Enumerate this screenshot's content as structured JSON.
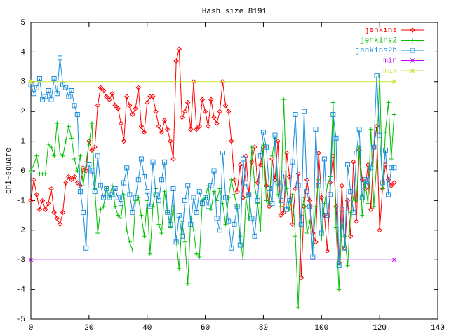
{
  "chart_data": {
    "type": "line",
    "title": "Hash size 8191",
    "ylabel": "chi-square",
    "x": [
      0,
      1,
      2,
      3,
      4,
      5,
      6,
      7,
      8,
      9,
      10,
      11,
      12,
      13,
      14,
      15,
      16,
      17,
      18,
      19,
      20,
      21,
      22,
      23,
      24,
      25,
      26,
      27,
      28,
      29,
      30,
      31,
      32,
      33,
      34,
      35,
      36,
      37,
      38,
      39,
      40,
      41,
      42,
      43,
      44,
      45,
      46,
      47,
      48,
      49,
      50,
      51,
      52,
      53,
      54,
      55,
      56,
      57,
      58,
      59,
      60,
      61,
      62,
      63,
      64,
      65,
      66,
      67,
      68,
      69,
      70,
      71,
      72,
      73,
      74,
      75,
      76,
      77,
      78,
      79,
      80,
      81,
      82,
      83,
      84,
      85,
      86,
      87,
      88,
      89,
      90,
      91,
      92,
      93,
      94,
      95,
      96,
      97,
      98,
      99,
      100,
      101,
      102,
      103,
      104,
      105,
      106,
      107,
      108,
      109,
      110,
      111,
      112,
      113,
      114,
      115,
      116,
      117,
      118,
      119,
      120,
      121,
      122,
      123,
      124,
      125
    ],
    "series": [
      {
        "name": "jenkins",
        "color": "#ff0000",
        "marker": "diamond",
        "values": [
          -1.0,
          -0.3,
          -0.8,
          -1.3,
          -1.0,
          -1.3,
          -1.1,
          -0.6,
          -1.4,
          -1.6,
          -1.8,
          -1.4,
          -0.4,
          -0.2,
          -0.3,
          -0.2,
          -0.4,
          -0.5,
          0.1,
          0.0,
          1.0,
          0.7,
          0.8,
          2.2,
          2.8,
          2.7,
          2.5,
          2.4,
          2.6,
          2.2,
          2.1,
          1.6,
          1.0,
          2.5,
          2.2,
          1.9,
          2.1,
          2.8,
          1.5,
          1.3,
          2.3,
          2.5,
          2.5,
          2.0,
          1.5,
          1.3,
          1.7,
          1.4,
          1.0,
          0.4,
          3.7,
          4.1,
          1.8,
          2.0,
          2.3,
          1.4,
          3.0,
          1.4,
          1.5,
          2.4,
          2.0,
          1.5,
          2.4,
          1.8,
          1.6,
          2.0,
          3.0,
          2.2,
          2.0,
          1.0,
          -0.3,
          -0.7,
          0.2,
          -0.9,
          0.5,
          -0.8,
          0.3,
          0.8,
          -0.4,
          0.2,
          0.8,
          -0.5,
          -1.2,
          0.4,
          -0.3,
          1.0,
          -1.5,
          -1.4,
          0.6,
          -0.2,
          -1.8,
          -0.6,
          -0.1,
          -3.6,
          -1.2,
          -0.3,
          -1.0,
          -2.1,
          -2.4,
          0.6,
          -0.9,
          -1.5,
          -2.7,
          -0.4,
          0.5,
          -1.2,
          -3.1,
          -0.5,
          -2.6,
          -1.0,
          -2.2,
          0.3,
          -1.7,
          0.7,
          -0.3,
          -0.6,
          0.2,
          -1.3,
          0.8,
          1.5,
          -2.0,
          -0.6,
          0.2,
          -0.3,
          -0.5,
          -0.4
        ]
      },
      {
        "name": "jenkins2",
        "color": "#00c000",
        "marker": "plus",
        "values": [
          0.0,
          0.2,
          0.5,
          -0.1,
          -0.1,
          -0.1,
          0.9,
          0.8,
          0.5,
          1.6,
          0.6,
          0.5,
          1.0,
          1.5,
          1.1,
          0.4,
          0.0,
          0.5,
          -0.5,
          0.3,
          0.9,
          1.6,
          -0.6,
          -2.1,
          -1.3,
          -1.2,
          -0.6,
          -0.9,
          -0.5,
          -1.2,
          -1.5,
          -1.6,
          -0.8,
          -2.0,
          -2.4,
          -2.7,
          -1.0,
          -0.9,
          -1.5,
          -2.2,
          -1.0,
          -2.8,
          -1.2,
          -0.6,
          -1.8,
          -2.1,
          -0.7,
          -1.4,
          -1.9,
          -1.2,
          -2.3,
          -3.3,
          -1.7,
          -2.4,
          -3.8,
          -1.6,
          -2.0,
          -2.8,
          -2.9,
          -1.0,
          -0.9,
          -0.5,
          -1.3,
          -0.7,
          -1.0,
          -0.6,
          -1.1,
          -1.8,
          -0.9,
          -0.3,
          -0.8,
          -1.2,
          -2.2,
          -3.0,
          -0.9,
          -1.6,
          0.8,
          -0.5,
          -1.1,
          -2.0,
          0.9,
          -1.0,
          -1.1,
          0.5,
          1.1,
          -0.8,
          -1.2,
          2.4,
          -0.6,
          -1.3,
          -0.8,
          -2.2,
          -4.6,
          -1.5,
          -0.9,
          -2.1,
          -1.7,
          -2.6,
          -1.2,
          -0.3,
          -2.3,
          -1.1,
          -0.5,
          -0.2,
          2.3,
          -1.9,
          -4.0,
          -1.8,
          -2.2,
          -3.2,
          -1.4,
          -0.9,
          -1.0,
          0.8,
          -1.5,
          -0.4,
          -1.1,
          1.4,
          -1.2,
          0.3,
          3.2,
          -0.6,
          1.3,
          2.3,
          0.4,
          1.9
        ]
      },
      {
        "name": "jenkins2b",
        "color": "#1a8fe0",
        "marker": "square",
        "values": [
          2.9,
          2.6,
          2.8,
          3.1,
          2.4,
          2.5,
          2.7,
          2.4,
          3.1,
          2.6,
          3.8,
          2.9,
          2.8,
          2.5,
          2.7,
          2.2,
          1.9,
          -0.7,
          -1.4,
          -2.6,
          0.2,
          0.0,
          -0.7,
          0.5,
          -0.5,
          -0.9,
          -0.6,
          -0.9,
          -0.8,
          -0.6,
          -0.9,
          -1.1,
          -0.4,
          0.1,
          -0.8,
          -1.4,
          -0.9,
          -0.3,
          0.4,
          -0.2,
          -0.7,
          -1.2,
          0.3,
          -0.8,
          -1.0,
          -0.3,
          0.3,
          -1.4,
          -1.8,
          -0.6,
          -2.4,
          -1.5,
          -2.2,
          -1.0,
          -0.5,
          -1.8,
          -0.9,
          -1.4,
          -0.7,
          -1.1,
          -0.9,
          -1.2,
          -0.5,
          0.0,
          -1.6,
          -2.0,
          0.6,
          -0.9,
          -1.7,
          -2.6,
          -1.8,
          -1.2,
          -2.5,
          0.4,
          -0.4,
          -0.8,
          -1.6,
          -2.2,
          -1.0,
          0.5,
          1.3,
          0.8,
          -0.6,
          -1.1,
          1.2,
          -0.4,
          -1.0,
          -0.1,
          -1.3,
          -1.0,
          0.3,
          1.9,
          -0.5,
          -1.8,
          2.0,
          -0.7,
          -1.2,
          -2.9,
          1.4,
          -0.5,
          -2.1,
          0.4,
          -1.5,
          -0.8,
          1.9,
          1.1,
          -3.2,
          -1.3,
          -2.6,
          0.2,
          -0.7,
          -1.4,
          0.6,
          1.4,
          -0.9,
          -0.3,
          -0.5,
          0.1,
          0.8,
          3.2,
          1.2,
          -0.4,
          0.7,
          -0.8,
          0.1,
          0.1
        ]
      },
      {
        "name": "min",
        "color": "#c000ff",
        "marker": "cross",
        "x": [
          0,
          125
        ],
        "values": [
          -3,
          -3
        ]
      },
      {
        "name": "max",
        "color": "#c8e632",
        "marker": "star",
        "x": [
          0,
          125
        ],
        "values": [
          3,
          3
        ]
      }
    ],
    "xlim": [
      0,
      140
    ],
    "xticks": [
      0,
      20,
      40,
      60,
      80,
      100,
      120,
      140
    ],
    "ylim": [
      -5,
      5
    ],
    "yticks": [
      -5,
      -4,
      -3,
      -2,
      -1,
      0,
      1,
      2,
      3,
      4,
      5
    ],
    "legend": "top-right"
  }
}
